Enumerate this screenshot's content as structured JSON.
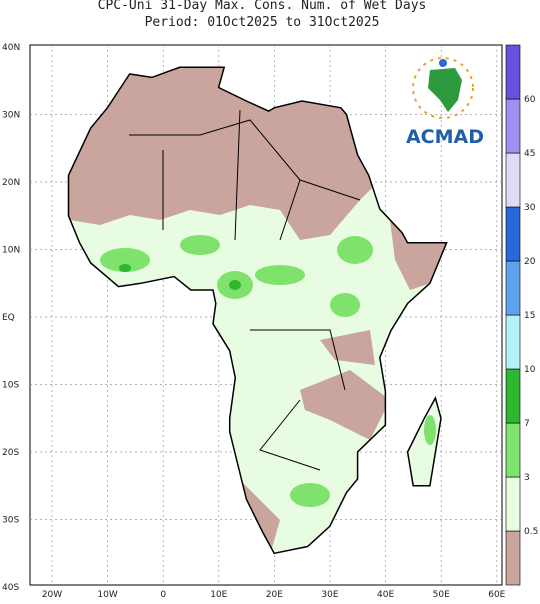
{
  "title": {
    "line1": "CPC-Uni 31-Day Max. Cons. Num. of Wet Days",
    "line2": "Period: 01Oct2025 to 31Oct2025"
  },
  "x_axis": {
    "labels": [
      "20W",
      "10W",
      "0",
      "10E",
      "20E",
      "30E",
      "40E",
      "50E",
      "60E"
    ]
  },
  "y_axis": {
    "labels": [
      "40N",
      "30N",
      "20N",
      "10N",
      "EQ",
      "10S",
      "20S",
      "30S",
      "40S"
    ]
  },
  "colorbar": {
    "labels": [
      0.5,
      3,
      7,
      10,
      15,
      20,
      30,
      45,
      60
    ],
    "colors": [
      "#c9a59d",
      "#e8fce2",
      "#7ee26c",
      "#2fb82f",
      "#b6f0fa",
      "#5ea2ee",
      "#2a66dc",
      "#dcdcf6",
      "#a08ef0",
      "#6652dc"
    ]
  },
  "logo": {
    "text": "ACMAD"
  }
}
